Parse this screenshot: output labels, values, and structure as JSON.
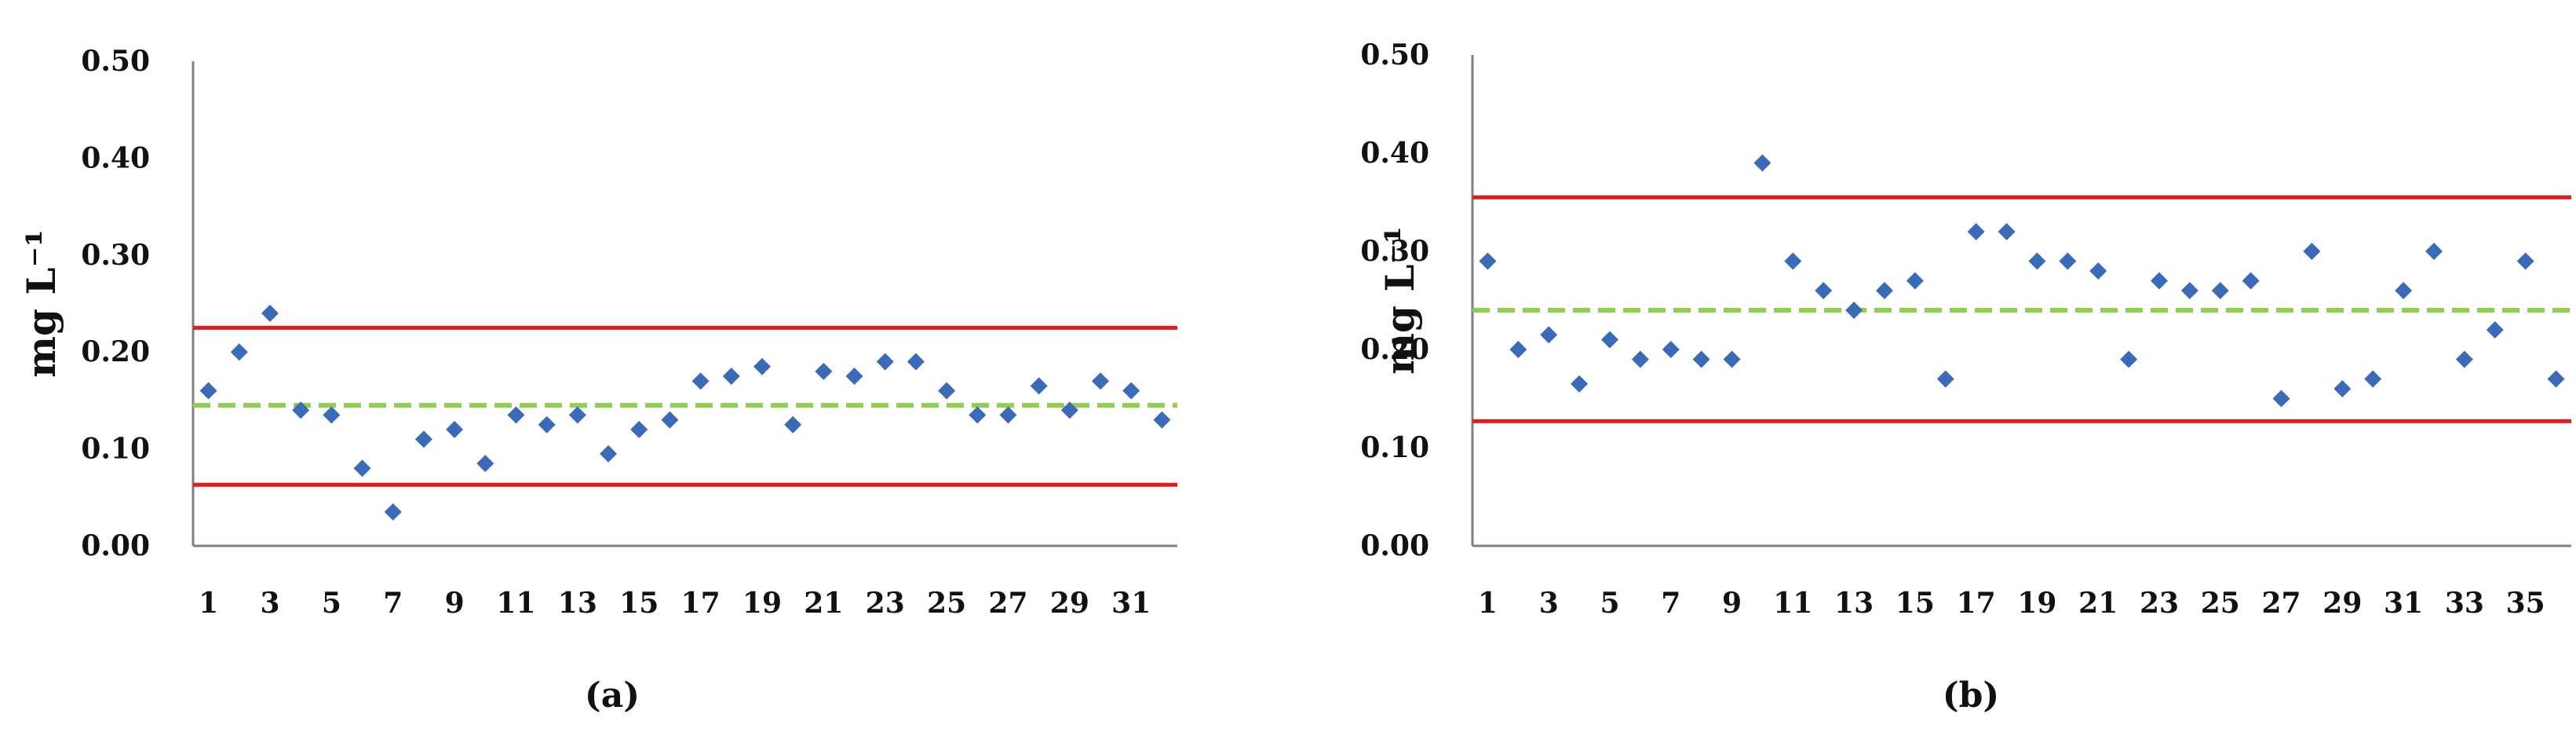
{
  "chart_data": [
    {
      "type": "scatter",
      "panel_label": "(a)",
      "ylabel": "mg L⁻¹",
      "ylim": [
        0,
        0.5
      ],
      "yticks": [
        "0.00",
        "0.10",
        "0.20",
        "0.30",
        "0.40",
        "0.50"
      ],
      "xticks": [
        "1",
        "3",
        "5",
        "7",
        "9",
        "11",
        "13",
        "15",
        "17",
        "19",
        "21",
        "23",
        "25",
        "27",
        "29",
        "31"
      ],
      "xlim": [
        0.5,
        32.5
      ],
      "x": [
        1,
        2,
        3,
        4,
        5,
        6,
        7,
        8,
        9,
        10,
        11,
        12,
        13,
        14,
        15,
        16,
        17,
        18,
        19,
        20,
        21,
        22,
        23,
        24,
        25,
        26,
        27,
        28,
        29,
        30,
        31,
        32
      ],
      "values": [
        0.16,
        0.2,
        0.24,
        0.14,
        0.135,
        0.08,
        0.035,
        0.11,
        0.12,
        0.085,
        0.135,
        0.125,
        0.135,
        0.095,
        0.12,
        0.13,
        0.17,
        0.175,
        0.185,
        0.125,
        0.18,
        0.175,
        0.19,
        0.19,
        0.16,
        0.135,
        0.135,
        0.165,
        0.14,
        0.17,
        0.16,
        0.13
      ],
      "reference_lines": [
        {
          "value": 0.225,
          "style": "solid",
          "color": "#e31a1c"
        },
        {
          "value": 0.145,
          "style": "dashed",
          "color": "#8fd14f"
        },
        {
          "value": 0.063,
          "style": "solid",
          "color": "#e31a1c"
        }
      ],
      "marker_color": "#3a6ab8",
      "grid": false
    },
    {
      "type": "scatter",
      "panel_label": "(b)",
      "ylabel": "mg L⁻¹",
      "ylim": [
        0,
        0.5
      ],
      "yticks": [
        "0.00",
        "0.10",
        "0.20",
        "0.30",
        "0.40",
        "0.50"
      ],
      "xticks": [
        "1",
        "3",
        "5",
        "7",
        "9",
        "11",
        "13",
        "15",
        "17",
        "19",
        "21",
        "23",
        "25",
        "27",
        "29",
        "31",
        "33",
        "35"
      ],
      "xlim": [
        0.5,
        36.5
      ],
      "x": [
        1,
        2,
        3,
        4,
        5,
        6,
        7,
        8,
        9,
        10,
        11,
        12,
        13,
        14,
        15,
        16,
        17,
        18,
        19,
        20,
        21,
        22,
        23,
        24,
        25,
        26,
        27,
        28,
        29,
        30,
        31,
        32,
        33,
        34,
        35,
        36
      ],
      "values": [
        0.29,
        0.2,
        0.215,
        0.165,
        0.21,
        0.19,
        0.2,
        0.19,
        0.19,
        0.39,
        0.29,
        0.26,
        0.24,
        0.26,
        0.27,
        0.17,
        0.32,
        0.32,
        0.29,
        0.29,
        0.28,
        0.19,
        0.27,
        0.26,
        0.26,
        0.27,
        0.15,
        0.3,
        0.16,
        0.17,
        0.26,
        0.3,
        0.19,
        0.22,
        0.29,
        0.17
      ],
      "reference_lines": [
        {
          "value": 0.355,
          "style": "solid",
          "color": "#e31a1c"
        },
        {
          "value": 0.24,
          "style": "dashed",
          "color": "#8fd14f"
        },
        {
          "value": 0.127,
          "style": "solid",
          "color": "#e31a1c"
        }
      ],
      "marker_color": "#3a6ab8",
      "grid": false
    }
  ]
}
